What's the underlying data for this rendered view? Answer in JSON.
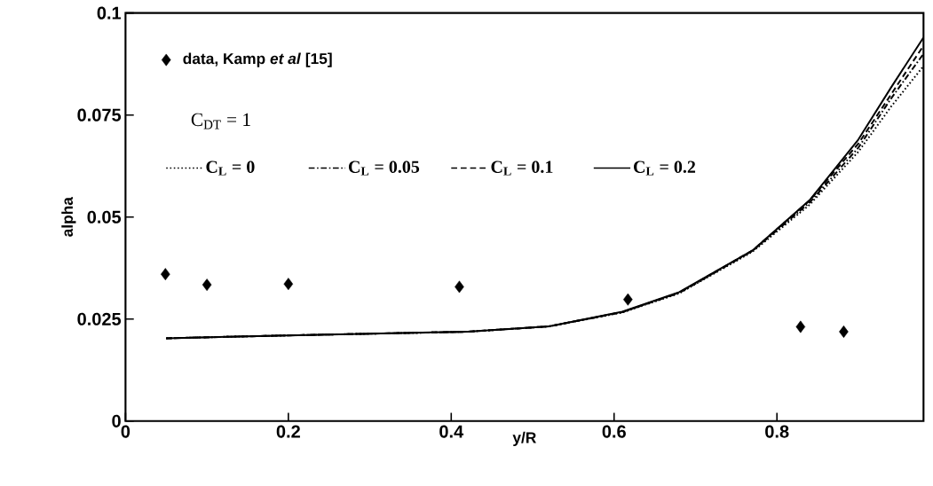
{
  "chart_data": {
    "type": "line",
    "xlabel": "y/R",
    "ylabel": "alpha",
    "xlim": [
      0,
      0.98
    ],
    "ylim": [
      0,
      0.1
    ],
    "xticks": [
      0,
      0.2,
      0.4,
      0.6,
      0.8
    ],
    "yticks": [
      0,
      0.025,
      0.05,
      0.075,
      0.1
    ],
    "legend": "top left",
    "grid": false,
    "annotations": [
      "C$_{DT}$ = 1"
    ],
    "series": [
      {
        "name": "data, Kamp *et al* [15]",
        "type": "scatter",
        "marker": "diamond",
        "color": "#000000",
        "x": [
          0.049,
          0.1,
          0.2,
          0.41,
          0.617,
          0.829,
          0.882
        ],
        "values": [
          0.036,
          0.0334,
          0.0336,
          0.0329,
          0.0298,
          0.0231,
          0.0219
        ]
      },
      {
        "name": "C$_{L}$ = 0",
        "line_style": "dotted",
        "color": "#000000",
        "x": [
          0.05,
          0.2,
          0.42,
          0.52,
          0.61,
          0.68,
          0.77,
          0.84,
          0.9,
          0.94,
          0.98
        ],
        "values": [
          0.0203,
          0.021,
          0.0219,
          0.0232,
          0.0266,
          0.0313,
          0.0415,
          0.053,
          0.066,
          0.077,
          0.087
        ]
      },
      {
        "name": "C$_{L}$ = 0.05",
        "line_style": "dashdot",
        "color": "#000000",
        "x": [
          0.05,
          0.2,
          0.42,
          0.52,
          0.61,
          0.68,
          0.77,
          0.84,
          0.9,
          0.94,
          0.98
        ],
        "values": [
          0.0203,
          0.021,
          0.0219,
          0.0232,
          0.0267,
          0.0314,
          0.0417,
          0.0535,
          0.067,
          0.079,
          0.09
        ]
      },
      {
        "name": "C$_{L}$ = 0.1",
        "line_style": "dashed",
        "color": "#000000",
        "x": [
          0.05,
          0.2,
          0.42,
          0.52,
          0.61,
          0.68,
          0.77,
          0.84,
          0.9,
          0.94,
          0.98
        ],
        "values": [
          0.0203,
          0.021,
          0.0219,
          0.0232,
          0.0267,
          0.0315,
          0.0418,
          0.054,
          0.068,
          0.08,
          0.092
        ]
      },
      {
        "name": "C$_{L}$ = 0.2",
        "line_style": "solid",
        "color": "#000000",
        "x": [
          0.05,
          0.2,
          0.42,
          0.52,
          0.61,
          0.68,
          0.77,
          0.84,
          0.9,
          0.94,
          0.98
        ],
        "values": [
          0.0203,
          0.021,
          0.0219,
          0.0232,
          0.0268,
          0.0316,
          0.0418,
          0.0541,
          0.069,
          0.0817,
          0.094
        ]
      }
    ]
  }
}
